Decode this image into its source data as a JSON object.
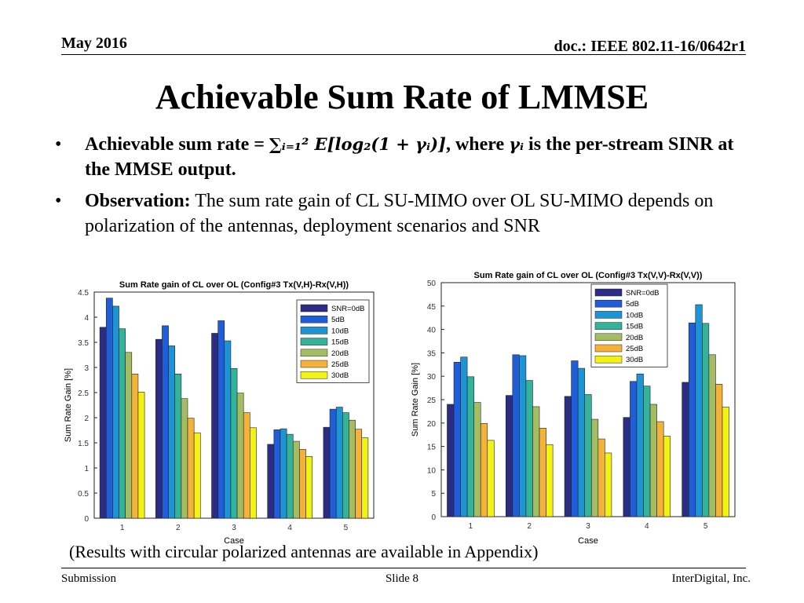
{
  "header": {
    "date": "May 2016",
    "doc": "doc.: IEEE 802.11-16/0642r1"
  },
  "title": "Achievable Sum Rate of LMMSE",
  "bullets": {
    "b1_prefix": "Achievable sum rate = ",
    "b1_formula": "∑ᵢ₌₁² E[log₂(1 + γᵢ)]",
    "b1_mid": ", where ",
    "b1_gamma": "γᵢ",
    "b1_suffix": " is the per-stream SINR at the MMSE output.",
    "b2_label": "Observation:",
    "b2_text": " The sum rate gain of CL SU-MIMO over OL SU-MIMO depends on polarization of the antennas, deployment scenarios and SNR"
  },
  "note": "(Results with circular polarized antennas are available in Appendix)",
  "footer": {
    "left": "Submission",
    "center": "Slide 8",
    "right": "InterDigital, Inc."
  },
  "chart_data": [
    {
      "type": "bar",
      "title": "Sum Rate gain of CL over OL (Config#3 Tx(V,H)-Rx(V,H))",
      "xlabel": "Case",
      "ylabel": "Sum Rate Gain [%]",
      "categories": [
        "1",
        "2",
        "3",
        "4",
        "5"
      ],
      "ylim": [
        0,
        4.5
      ],
      "yticks": [
        "0",
        "0.5",
        "1",
        "1.5",
        "2",
        "2.5",
        "3",
        "3.5",
        "4",
        "4.5"
      ],
      "legend_position": "top-right",
      "series": [
        {
          "name": "SNR=0dB",
          "color": "#2b2d84",
          "values": [
            3.8,
            3.56,
            3.68,
            1.47,
            1.81
          ]
        },
        {
          "name": "5dB",
          "color": "#1f5ed8",
          "values": [
            4.38,
            3.83,
            3.93,
            1.76,
            2.17
          ]
        },
        {
          "name": "10dB",
          "color": "#1d94d4",
          "values": [
            4.22,
            3.43,
            3.53,
            1.78,
            2.21
          ]
        },
        {
          "name": "15dB",
          "color": "#32b39a",
          "values": [
            3.77,
            2.87,
            2.98,
            1.67,
            2.1
          ]
        },
        {
          "name": "20dB",
          "color": "#a4bd63",
          "values": [
            3.3,
            2.38,
            2.49,
            1.53,
            1.95
          ]
        },
        {
          "name": "25dB",
          "color": "#f5b23a",
          "values": [
            2.87,
            1.99,
            2.1,
            1.37,
            1.77
          ]
        },
        {
          "name": "30dB",
          "color": "#f2f214",
          "values": [
            2.51,
            1.7,
            1.8,
            1.23,
            1.6
          ]
        }
      ]
    },
    {
      "type": "bar",
      "title": "Sum Rate gain of CL over OL (Config#3 Tx(V,V)-Rx(V,V))",
      "xlabel": "Case",
      "ylabel": "Sum Rate Gain [%]",
      "categories": [
        "1",
        "2",
        "3",
        "4",
        "5"
      ],
      "ylim": [
        0,
        50
      ],
      "yticks": [
        "0",
        "5",
        "10",
        "15",
        "20",
        "25",
        "30",
        "35",
        "40",
        "45",
        "50"
      ],
      "legend_position": "top-right",
      "series": [
        {
          "name": "SNR=0dB",
          "color": "#2b2d84",
          "values": [
            24.0,
            25.9,
            25.7,
            21.2,
            28.7
          ]
        },
        {
          "name": "5dB",
          "color": "#1f5ed8",
          "values": [
            33.0,
            34.6,
            33.3,
            28.9,
            41.4
          ]
        },
        {
          "name": "10dB",
          "color": "#1d94d4",
          "values": [
            34.1,
            34.4,
            31.7,
            30.5,
            45.3
          ]
        },
        {
          "name": "15dB",
          "color": "#32b39a",
          "values": [
            29.9,
            29.1,
            26.1,
            27.9,
            41.3
          ]
        },
        {
          "name": "20dB",
          "color": "#a4bd63",
          "values": [
            24.4,
            23.5,
            20.8,
            24.0,
            34.6
          ]
        },
        {
          "name": "25dB",
          "color": "#f5b23a",
          "values": [
            19.9,
            18.9,
            16.6,
            20.3,
            28.3
          ]
        },
        {
          "name": "30dB",
          "color": "#f2f214",
          "values": [
            16.3,
            15.4,
            13.6,
            17.2,
            23.4
          ]
        }
      ]
    }
  ]
}
